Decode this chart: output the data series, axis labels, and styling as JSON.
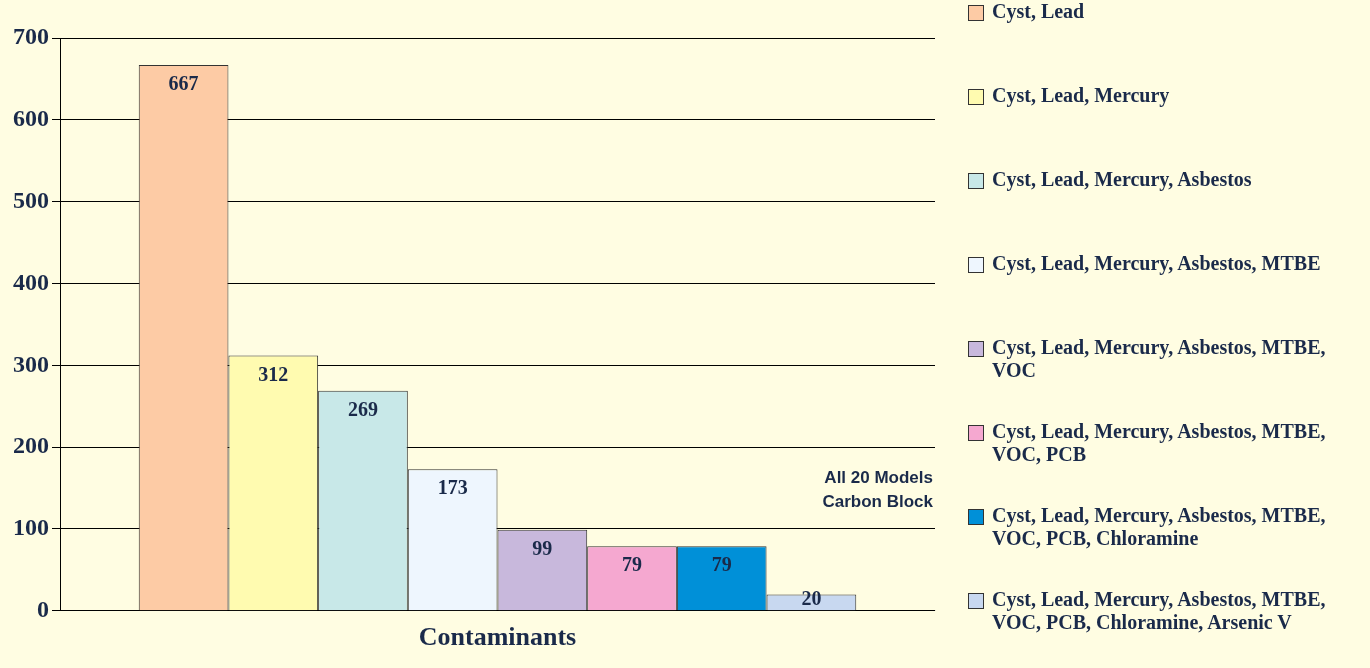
{
  "chart_data": {
    "type": "bar",
    "xlabel": "Contaminants",
    "categories": [
      null
    ],
    "series": [
      {
        "name": "Cyst, Lead",
        "color": "#fdcba5",
        "values": [
          667
        ]
      },
      {
        "name": "Cyst, Lead, Mercury",
        "color": "#fffbb0",
        "values": [
          312
        ]
      },
      {
        "name": "Cyst, Lead, Mercury, Asbestos",
        "color": "#c8e8e8",
        "values": [
          269
        ]
      },
      {
        "name": "Cyst, Lead, Mercury, Asbestos, MTBE",
        "color": "#eef6fe",
        "values": [
          173
        ]
      },
      {
        "name": "Cyst, Lead, Mercury, Asbestos, MTBE, VOC",
        "color": "#c8b8dc",
        "values": [
          99
        ]
      },
      {
        "name": "Cyst, Lead, Mercury, Asbestos, MTBE, VOC, PCB",
        "color": "#f5a8d0",
        "values": [
          79
        ]
      },
      {
        "name": "Cyst, Lead, Mercury, Asbestos, MTBE, VOC, PCB, Chloramine",
        "color": "#0090d8",
        "values": [
          79
        ]
      },
      {
        "name": "Cyst, Lead, Mercury, Asbestos, MTBE, VOC, PCB, Chloramine, Arsenic V",
        "color": "#c8d8f0",
        "values": [
          20
        ]
      }
    ],
    "ylim": [
      0,
      700
    ],
    "yticks": [
      0,
      100,
      200,
      300,
      400,
      500,
      600,
      700
    ],
    "grid": "y",
    "legend": "right",
    "data_labels": true,
    "annotations": [
      "All 20 Models",
      "Carbon Block"
    ]
  }
}
